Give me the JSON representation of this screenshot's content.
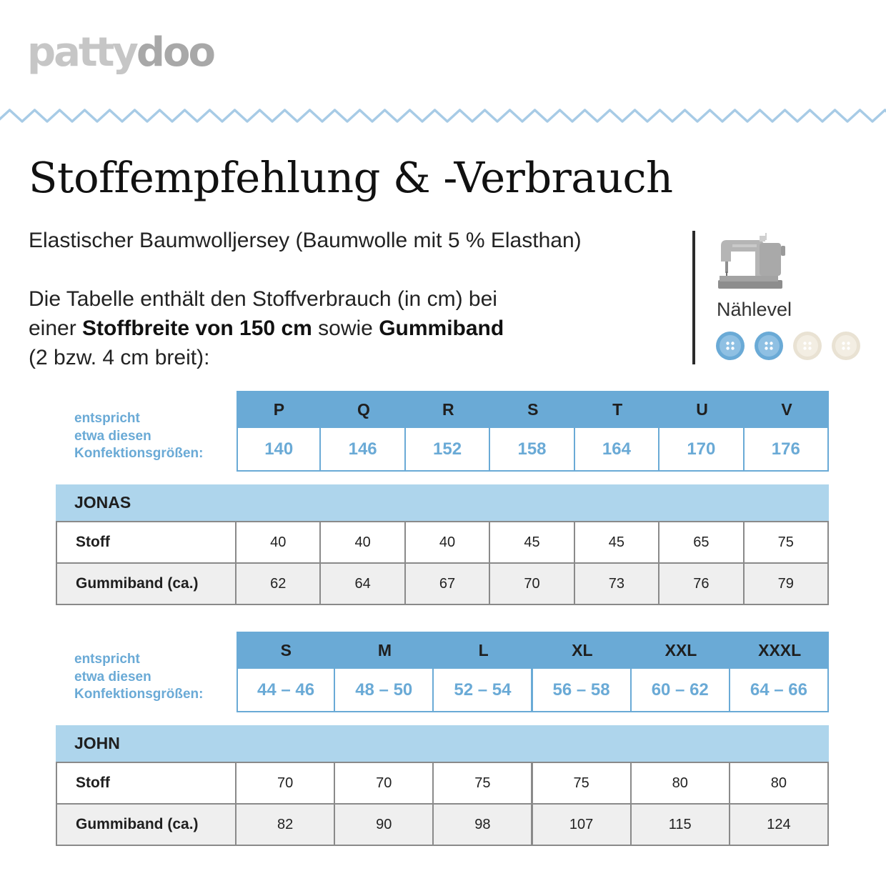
{
  "logo": {
    "part1": "patty",
    "part2": "doo"
  },
  "title": "Stoffempfehlung & -Verbrauch",
  "subtitle": "Elastischer Baumwolljersey (Baumwolle mit 5 % Elasthan)",
  "description": {
    "line1": "Die Tabelle enthält den Stoffverbrauch (in cm) bei",
    "line2_pre": "einer ",
    "line2_bold1": "Stoffbreite von 150 cm",
    "line2_mid": " sowie ",
    "line2_bold2": "Gummiband",
    "line3": "(2 bzw. 4 cm breit):"
  },
  "level": {
    "label": "Nählevel",
    "filled": 2,
    "total": 4,
    "filled_color": "#6aaad6",
    "empty_color": "#e9e2d3",
    "icon": "sewing-machine-icon"
  },
  "colors": {
    "accent": "#6aaad6",
    "band": "#aed5ec",
    "logo": "#c6c6c6",
    "wave": "#a7cbe6"
  },
  "size_note": [
    "entspricht",
    "etwa diesen",
    "Konfektionsgrößen:"
  ],
  "tables": [
    {
      "name": "JONAS",
      "sizes": [
        "P",
        "Q",
        "R",
        "S",
        "T",
        "U",
        "V"
      ],
      "equivalents": [
        "140",
        "146",
        "152",
        "158",
        "164",
        "170",
        "176"
      ],
      "rows": [
        {
          "label": "Stoff",
          "values": [
            "40",
            "40",
            "40",
            "45",
            "45",
            "65",
            "75"
          ]
        },
        {
          "label": "Gummiband (ca.)",
          "values": [
            "62",
            "64",
            "67",
            "70",
            "73",
            "76",
            "79"
          ]
        }
      ]
    },
    {
      "name": "JOHN",
      "sizes": [
        "S",
        "M",
        "L",
        "XL",
        "XXL",
        "XXXL"
      ],
      "equivalents": [
        "44 – 46",
        "48 – 50",
        "52 – 54",
        "56 – 58",
        "60 – 62",
        "64 – 66"
      ],
      "rows": [
        {
          "label": "Stoff",
          "values": [
            "70",
            "70",
            "75",
            "75",
            "80",
            "80"
          ]
        },
        {
          "label": "Gummiband (ca.)",
          "values": [
            "82",
            "90",
            "98",
            "107",
            "115",
            "124"
          ]
        }
      ]
    }
  ]
}
